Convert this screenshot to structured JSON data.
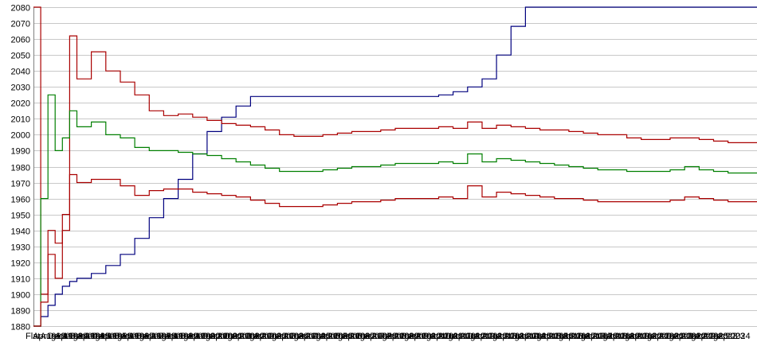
{
  "chart_data": {
    "type": "line",
    "ylim": [
      1880,
      2080
    ],
    "yticks": [
      1880,
      1890,
      1900,
      1910,
      1920,
      1930,
      1940,
      1950,
      1960,
      1970,
      1980,
      1990,
      2000,
      2010,
      2020,
      2030,
      2040,
      2050,
      2060,
      2070,
      2080
    ],
    "grid": true,
    "x_tick_labels": [
      "Flat",
      "Apr1993",
      "Aug1993",
      "Dec1993",
      "Apr1994",
      "Aug1994",
      "Dec1994",
      "Apr1995",
      "Aug1995",
      "Dec1995",
      "Apr1996",
      "Aug1996",
      "Dec1996",
      "Apr1997",
      "Aug1997",
      "Dec1997",
      "Apr1998",
      "Aug1998",
      "Dec1998",
      "Apr1999",
      "Aug1999",
      "Dec1999",
      "Apr2000",
      "Aug2000",
      "Dec2000",
      "Apr2001",
      "Aug2001",
      "Dec2001",
      "Apr2002",
      "Aug2002",
      "Dec2002",
      "Apr2003",
      "Aug2003",
      "Dec2003",
      "Apr2004",
      "Aug2004",
      "Dec2004",
      "Apr2005",
      "Aug2005",
      "Dec2005",
      "Apr2006",
      "Aug2006",
      "Dec2006",
      "Apr2007",
      "Aug2007",
      "Dec2007",
      "Apr2008",
      "Aug2008",
      "Dec2008",
      "Apr2009",
      "Aug2009",
      "Dec2009",
      "Apr2010",
      "Aug2010",
      "Dec2010",
      "Apr2011",
      "Aug2011",
      "Dec2011",
      "Apr2012",
      "Aug2012",
      "Dec2012",
      "Apr2013",
      "Aug2013",
      "Dec2013",
      "Apr2014",
      "Aug2014",
      "Dec2014",
      "Apr2015",
      "Aug2015",
      "Dec2015",
      "Apr2016",
      "Aug2016",
      "Dec2016",
      "Apr2017",
      "Aug2017",
      "Dec2017",
      "Apr2018",
      "Aug2018",
      "Dec2018",
      "Apr2019",
      "Aug2019",
      "Dec2019",
      "Apr2020",
      "Aug2020",
      "Dec2020",
      "Apr2021",
      "Aug2021",
      "Dec2021",
      "Apr2022",
      "Aug2022",
      "Dec2022",
      "Apr2023",
      "Aug2023",
      "Dec2023",
      "Apr2024"
    ],
    "x": [
      0,
      1,
      2,
      3,
      4,
      5,
      6,
      8,
      10,
      12,
      14,
      16,
      18,
      20,
      22,
      24,
      26,
      28,
      30,
      32,
      34,
      36,
      38,
      40,
      42,
      44,
      46,
      48,
      50,
      52,
      54,
      56,
      58,
      60,
      62,
      64,
      66,
      68,
      70,
      72,
      74,
      76,
      78,
      80,
      82,
      84,
      86,
      88,
      90,
      92,
      94,
      96,
      98,
      100
    ],
    "series": [
      {
        "color": "#00007f",
        "values": [
          1880,
          1886,
          1893,
          1900,
          1905,
          1908,
          1910,
          1913,
          1918,
          1925,
          1935,
          1948,
          1960,
          1972,
          1988,
          2002,
          2011,
          2018,
          2024,
          2024,
          2024,
          2024,
          2024,
          2024,
          2024,
          2024,
          2024,
          2024,
          2024,
          2024,
          2024,
          2025,
          2027,
          2030,
          2035,
          2050,
          2068,
          2080,
          2080,
          2080,
          2080,
          2080,
          2080,
          2080,
          2080,
          2080,
          2080,
          2080,
          2080,
          2080,
          2080,
          2080,
          2080,
          2080
        ]
      },
      {
        "color": "#aa0000",
        "values": [
          2080,
          1900,
          1925,
          1910,
          1940,
          2062,
          2035,
          2052,
          2040,
          2033,
          2025,
          2015,
          2012,
          2013,
          2011,
          2009,
          2007,
          2006,
          2005,
          2003,
          2000,
          1999,
          1999,
          2000,
          2001,
          2002,
          2002,
          2003,
          2004,
          2004,
          2004,
          2005,
          2004,
          2008,
          2004,
          2006,
          2005,
          2004,
          2003,
          2003,
          2002,
          2001,
          2000,
          2000,
          1998,
          1997,
          1997,
          1998,
          1998,
          1997,
          1996,
          1995,
          1995,
          1995
        ]
      },
      {
        "color": "#007f00",
        "values": [
          1880,
          1960,
          2025,
          1990,
          1998,
          2015,
          2005,
          2008,
          2000,
          1998,
          1992,
          1990,
          1990,
          1989,
          1988,
          1987,
          1985,
          1983,
          1981,
          1979,
          1977,
          1977,
          1977,
          1978,
          1979,
          1980,
          1980,
          1981,
          1982,
          1982,
          1982,
          1983,
          1982,
          1988,
          1983,
          1985,
          1984,
          1983,
          1982,
          1981,
          1980,
          1979,
          1978,
          1978,
          1977,
          1977,
          1977,
          1978,
          1980,
          1978,
          1977,
          1976,
          1976,
          1976
        ]
      },
      {
        "color": "#aa0000",
        "values": [
          1880,
          1895,
          1940,
          1932,
          1950,
          1975,
          1970,
          1972,
          1972,
          1968,
          1962,
          1965,
          1966,
          1966,
          1964,
          1963,
          1962,
          1961,
          1959,
          1957,
          1955,
          1955,
          1955,
          1956,
          1957,
          1958,
          1958,
          1959,
          1960,
          1960,
          1960,
          1961,
          1960,
          1968,
          1961,
          1964,
          1963,
          1962,
          1961,
          1960,
          1960,
          1959,
          1958,
          1958,
          1958,
          1958,
          1958,
          1959,
          1961,
          1960,
          1959,
          1958,
          1958,
          1958
        ]
      }
    ]
  }
}
